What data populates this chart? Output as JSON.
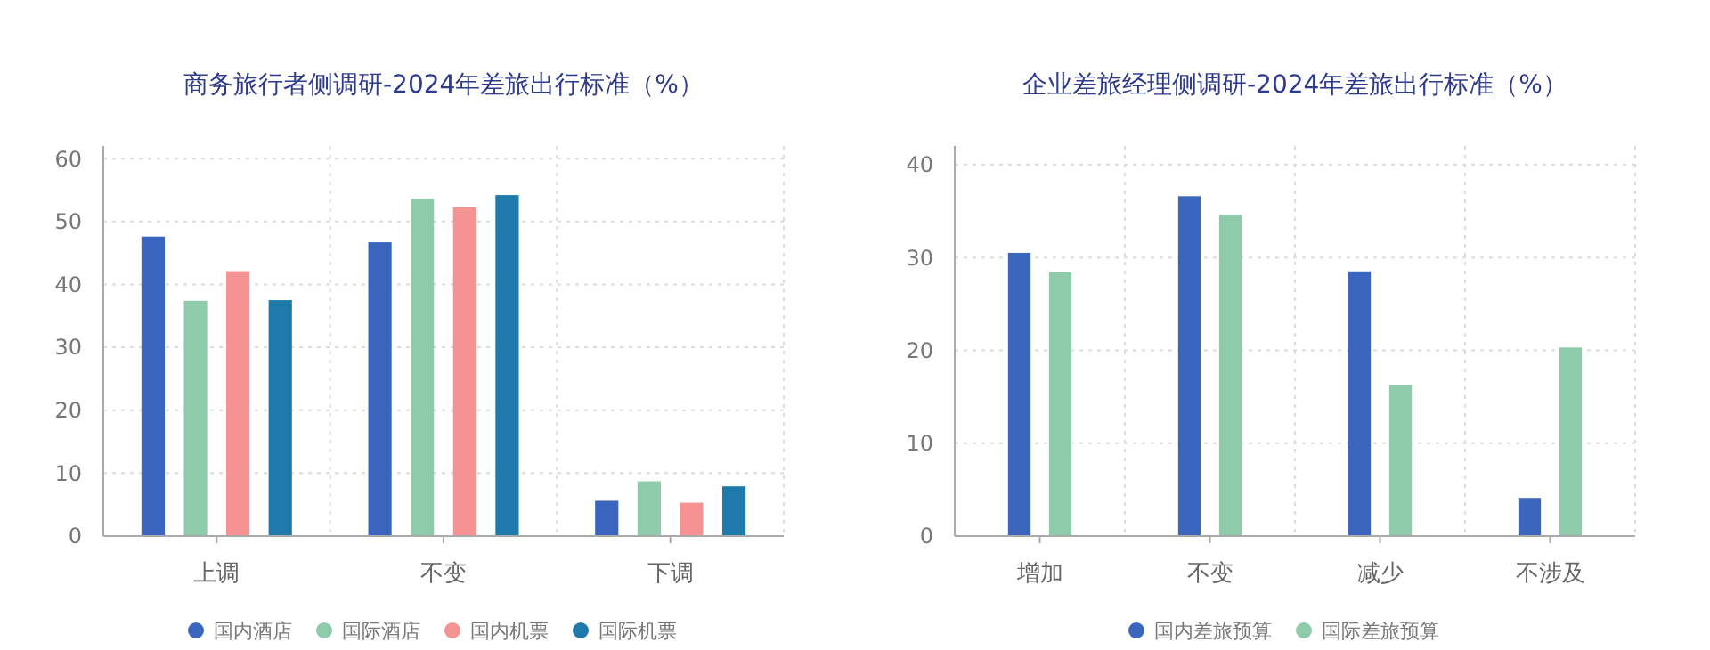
{
  "chart_data": [
    {
      "type": "bar",
      "title": "商务旅行者侧调研-2024年差旅出行标准（%）",
      "categories": [
        "上调",
        "不变",
        "下调"
      ],
      "series": [
        {
          "name": "国内酒店",
          "color": "#3a66bd",
          "values": [
            47.6,
            46.7,
            5.6
          ]
        },
        {
          "name": "国际酒店",
          "color": "#8ecbaa",
          "values": [
            37.4,
            53.6,
            8.7
          ]
        },
        {
          "name": "国内机票",
          "color": "#f59393",
          "values": [
            42.1,
            52.3,
            5.3
          ]
        },
        {
          "name": "国际机票",
          "color": "#1f7aab",
          "values": [
            37.5,
            54.2,
            7.9
          ]
        }
      ],
      "ylim": [
        0,
        62
      ],
      "yticks": [
        0,
        10,
        20,
        30,
        40,
        50,
        60
      ],
      "grid": true,
      "legend": "bottom"
    },
    {
      "type": "bar",
      "title": "企业差旅经理侧调研-2024年差旅出行标准（%）",
      "categories": [
        "增加",
        "不变",
        "减少",
        "不涉及"
      ],
      "series": [
        {
          "name": "国内差旅预算",
          "color": "#3a66bd",
          "values": [
            30.5,
            36.6,
            28.5,
            4.1
          ]
        },
        {
          "name": "国际差旅预算",
          "color": "#8ecbaa",
          "values": [
            28.4,
            34.6,
            16.3,
            20.3
          ]
        }
      ],
      "ylim": [
        0,
        42
      ],
      "yticks": [
        0,
        10,
        20,
        30,
        40
      ],
      "grid": true,
      "legend": "bottom"
    }
  ]
}
